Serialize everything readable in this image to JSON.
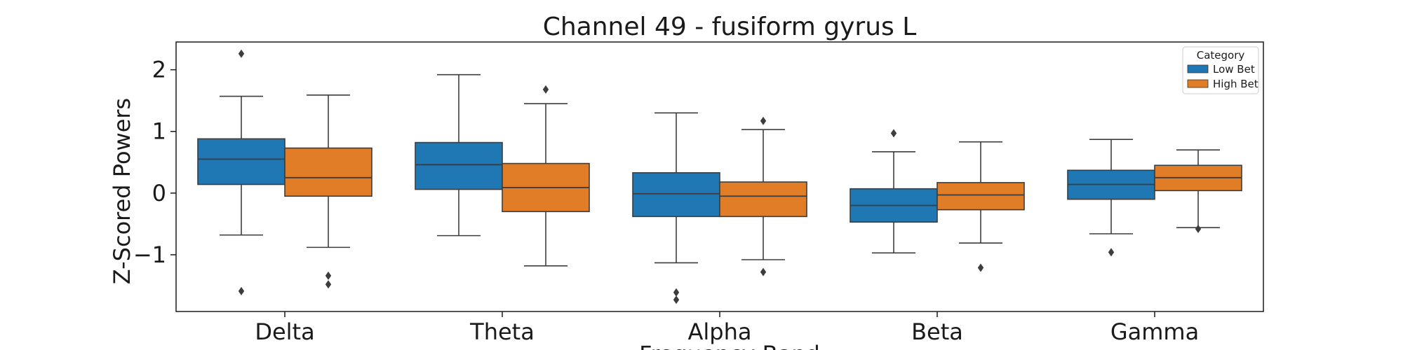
{
  "chart_data": {
    "type": "box",
    "title": "Channel 49 - fusiform gyrus L",
    "xlabel": "Frequency Band",
    "ylabel": "Z-Scored Powers",
    "categories": [
      "Delta",
      "Theta",
      "Alpha",
      "Beta",
      "Gamma"
    ],
    "ylim": [
      -1.92,
      2.45
    ],
    "yticks": [
      -1,
      0,
      1,
      2
    ],
    "ytick_labels": [
      "−1",
      "0",
      "1",
      "2"
    ],
    "legend": {
      "title": "Category",
      "position": "upper right"
    },
    "grid": false,
    "series": [
      {
        "name": "Low Bet",
        "color": "#1f77b4",
        "boxes": [
          {
            "q1": 0.14,
            "median": 0.55,
            "q3": 0.88,
            "whisker_low": -0.68,
            "whisker_high": 1.57,
            "outliers": [
              2.26,
              -1.59
            ]
          },
          {
            "q1": 0.06,
            "median": 0.46,
            "q3": 0.82,
            "whisker_low": -0.69,
            "whisker_high": 1.92,
            "outliers": []
          },
          {
            "q1": -0.38,
            "median": -0.01,
            "q3": 0.33,
            "whisker_low": -1.13,
            "whisker_high": 1.3,
            "outliers": [
              -1.61,
              -1.73
            ]
          },
          {
            "q1": -0.47,
            "median": -0.2,
            "q3": 0.07,
            "whisker_low": -0.97,
            "whisker_high": 0.67,
            "outliers": [
              0.97
            ]
          },
          {
            "q1": -0.1,
            "median": 0.14,
            "q3": 0.37,
            "whisker_low": -0.66,
            "whisker_high": 0.87,
            "outliers": [
              -0.96
            ]
          }
        ]
      },
      {
        "name": "High Bet",
        "color": "#e07d26",
        "boxes": [
          {
            "q1": -0.05,
            "median": 0.25,
            "q3": 0.73,
            "whisker_low": -0.88,
            "whisker_high": 1.59,
            "outliers": [
              -1.34,
              -1.48
            ]
          },
          {
            "q1": -0.3,
            "median": 0.09,
            "q3": 0.48,
            "whisker_low": -1.18,
            "whisker_high": 1.45,
            "outliers": [
              1.68
            ]
          },
          {
            "q1": -0.38,
            "median": -0.05,
            "q3": 0.18,
            "whisker_low": -1.08,
            "whisker_high": 1.03,
            "outliers": [
              1.17,
              -1.28
            ]
          },
          {
            "q1": -0.27,
            "median": -0.03,
            "q3": 0.17,
            "whisker_low": -0.81,
            "whisker_high": 0.83,
            "outliers": [
              -1.21
            ]
          },
          {
            "q1": 0.04,
            "median": 0.25,
            "q3": 0.45,
            "whisker_low": -0.56,
            "whisker_high": 0.7,
            "outliers": [
              -0.58
            ]
          }
        ]
      }
    ]
  }
}
